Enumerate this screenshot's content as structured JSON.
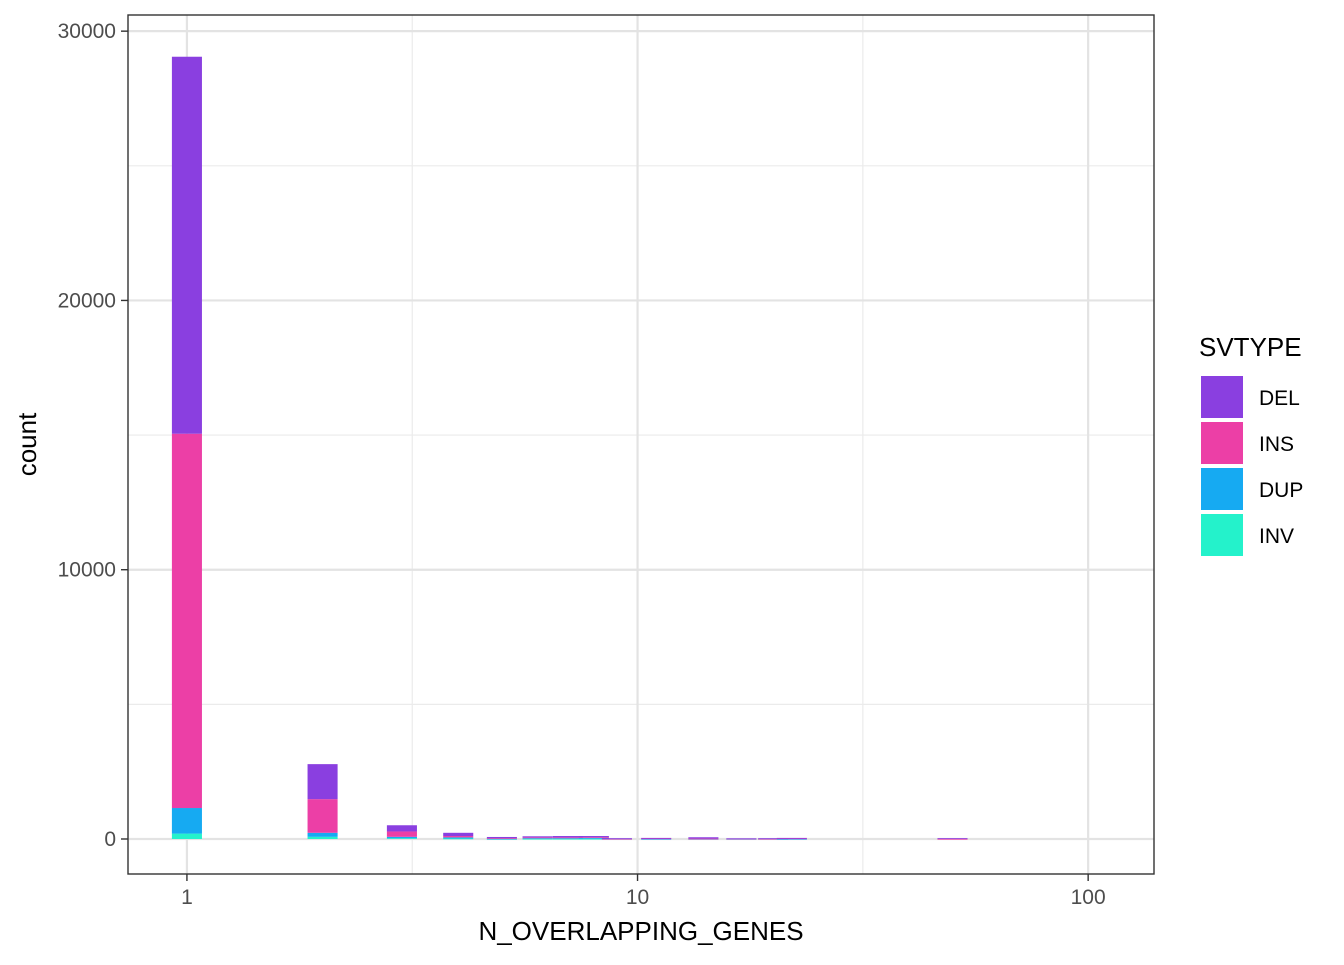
{
  "chart_data": {
    "type": "bar",
    "subtype": "stacked-histogram",
    "xlabel": "N_OVERLAPPING_GENES",
    "ylabel": "count",
    "x_scale": "log10",
    "xlim": [
      0.74,
      140
    ],
    "ylim": [
      -1300,
      30600
    ],
    "x_ticks": [
      1,
      10,
      100
    ],
    "x_tick_labels": [
      "1",
      "10",
      "100"
    ],
    "y_ticks": [
      0,
      10000,
      20000,
      30000
    ],
    "y_tick_labels": [
      "0",
      "10000",
      "20000",
      "30000"
    ],
    "grid": true,
    "legend": {
      "title": "SVTYPE",
      "position": "right"
    },
    "bin_width_log10": 0.0667,
    "bins": [
      1,
      2,
      3,
      4,
      5,
      6,
      7,
      8,
      9,
      11,
      14,
      17,
      20,
      22,
      50
    ],
    "series": [
      {
        "name": "DEL",
        "color": "#8A3FE0",
        "values": [
          14000,
          1300,
          230,
          120,
          40,
          40,
          50,
          40,
          20,
          15,
          50,
          10,
          20,
          15,
          30
        ]
      },
      {
        "name": "INS",
        "color": "#EC3FA6",
        "values": [
          13900,
          1250,
          200,
          50,
          20,
          20,
          20,
          20,
          5,
          20,
          10,
          10,
          5,
          20,
          5
        ]
      },
      {
        "name": "DUP",
        "color": "#16AAF2",
        "values": [
          950,
          150,
          50,
          40,
          10,
          30,
          30,
          40,
          5,
          5,
          5,
          5,
          5,
          5,
          0
        ]
      },
      {
        "name": "INV",
        "color": "#24F2CB",
        "values": [
          200,
          80,
          30,
          20,
          5,
          10,
          10,
          10,
          0,
          0,
          0,
          0,
          0,
          0,
          0
        ]
      }
    ]
  }
}
